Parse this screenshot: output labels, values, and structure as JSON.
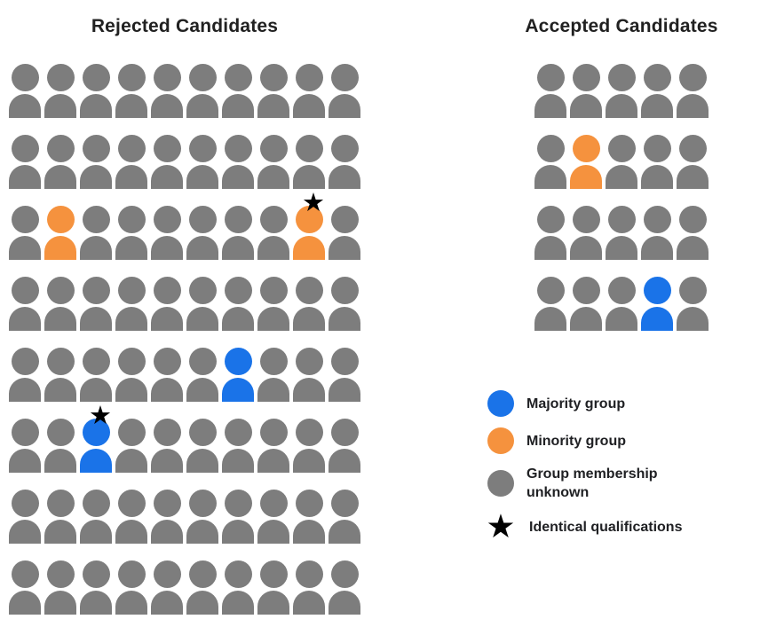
{
  "rejected": {
    "title": "Rejected Candidates",
    "rows": 8,
    "cols": 10,
    "default_group": "unknown",
    "special_cells": [
      {
        "row": 2,
        "col": 1,
        "group": "minority",
        "star": false
      },
      {
        "row": 2,
        "col": 8,
        "group": "minority",
        "star": true
      },
      {
        "row": 4,
        "col": 6,
        "group": "majority",
        "star": false
      },
      {
        "row": 5,
        "col": 2,
        "group": "majority",
        "star": true
      }
    ]
  },
  "accepted": {
    "title": "Accepted Candidates",
    "rows": 4,
    "cols": 5,
    "default_group": "unknown",
    "special_cells": [
      {
        "row": 1,
        "col": 1,
        "group": "minority",
        "star": false
      },
      {
        "row": 3,
        "col": 3,
        "group": "majority",
        "star": false
      }
    ]
  },
  "legend": {
    "items": [
      {
        "key": "majority",
        "marker": "circle",
        "group": "majority",
        "label": "Majority group"
      },
      {
        "key": "minority",
        "marker": "circle",
        "group": "minority",
        "label": "Minority group"
      },
      {
        "key": "unknown",
        "marker": "circle",
        "group": "unknown",
        "label": "Group membership unknown"
      },
      {
        "key": "identical-qualifications",
        "marker": "star",
        "group": "star",
        "label": "Identical qualifications"
      }
    ]
  },
  "colors": {
    "majority": "#1A73E8",
    "minority": "#F5923E",
    "unknown": "#7D7D7D",
    "star": "#000000"
  },
  "icons": {
    "star_glyph": "★"
  }
}
